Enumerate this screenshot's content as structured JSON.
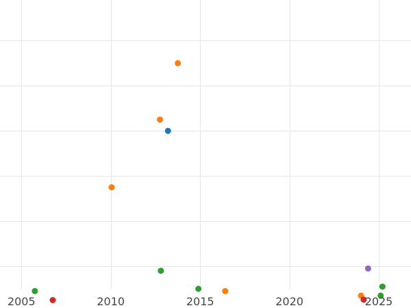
{
  "chart_data": {
    "type": "scatter",
    "title": "",
    "xlabel": "",
    "ylabel": "",
    "xlim": [
      2003.8,
      2026.8
    ],
    "ylim": [
      0,
      6.4
    ],
    "x_ticks": [
      2005,
      2010,
      2015,
      2020,
      2025
    ],
    "x_tick_labels": [
      "2005",
      "2010",
      "2015",
      "2020",
      "2025"
    ],
    "y_gridlines": [
      0.5,
      1.5,
      2.5,
      3.5,
      4.5,
      5.5,
      6.5
    ],
    "grid": true,
    "legend": "none",
    "points": [
      {
        "x": 2013.75,
        "y": 5.0,
        "color": "#ff7f0e"
      },
      {
        "x": 2012.75,
        "y": 3.75,
        "color": "#ff7f0e"
      },
      {
        "x": 2013.2,
        "y": 3.5,
        "color": "#1f77b4"
      },
      {
        "x": 2010.05,
        "y": 2.25,
        "color": "#ff7f0e"
      },
      {
        "x": 2012.8,
        "y": 0.4,
        "color": "#2ca02c"
      },
      {
        "x": 2014.9,
        "y": 0.0,
        "color": "#2ca02c"
      },
      {
        "x": 2016.4,
        "y": -0.05,
        "color": "#ff7f0e"
      },
      {
        "x": 2005.75,
        "y": -0.05,
        "color": "#2ca02c"
      },
      {
        "x": 2006.75,
        "y": -0.25,
        "color": "#d62728"
      },
      {
        "x": 2024.4,
        "y": 0.45,
        "color": "#9467bd"
      },
      {
        "x": 2025.2,
        "y": 0.05,
        "color": "#2ca02c"
      },
      {
        "x": 2025.1,
        "y": -0.15,
        "color": "#2ca02c"
      },
      {
        "x": 2024.0,
        "y": -0.15,
        "color": "#ff7f0e"
      },
      {
        "x": 2024.15,
        "y": -0.24,
        "color": "#d62728"
      }
    ]
  }
}
